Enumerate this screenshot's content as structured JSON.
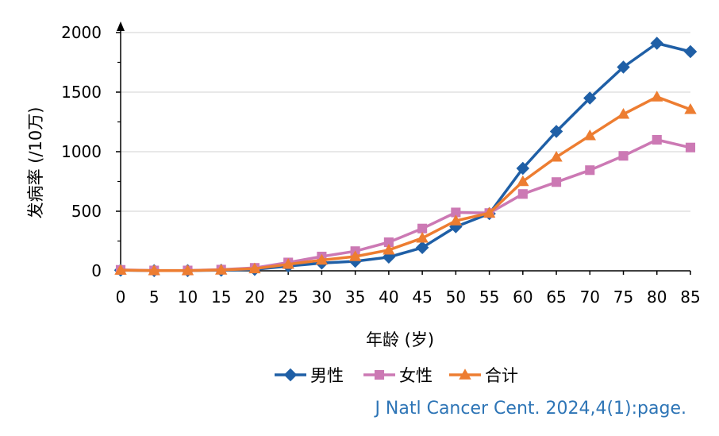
{
  "chart_data": {
    "type": "line",
    "title": "",
    "xlabel": "年龄 (岁)",
    "ylabel": "发病率 (/10万)",
    "x": [
      0,
      5,
      10,
      15,
      20,
      25,
      30,
      35,
      40,
      45,
      50,
      55,
      60,
      65,
      70,
      75,
      80,
      85
    ],
    "x_tick_labels": [
      "0",
      "5",
      "10",
      "15",
      "20",
      "25",
      "30",
      "35",
      "40",
      "45",
      "50",
      "55",
      "60",
      "65",
      "70",
      "75",
      "80",
      "85"
    ],
    "ylim": [
      0,
      2000
    ],
    "y_ticks": [
      0,
      500,
      1000,
      1500,
      2000
    ],
    "y_tick_labels": [
      "0",
      "500",
      "1000",
      "1500",
      "2000"
    ],
    "grid": true,
    "legend_position": "bottom",
    "series": [
      {
        "name": "男性",
        "color": "#1f5fa6",
        "marker": "diamond",
        "values": [
          5,
          2,
          2,
          5,
          12,
          40,
          65,
          80,
          115,
          195,
          370,
          480,
          860,
          1170,
          1450,
          1710,
          1910,
          1840
        ]
      },
      {
        "name": "女性",
        "color": "#cc79b4",
        "marker": "square",
        "values": [
          8,
          3,
          3,
          10,
          25,
          70,
          120,
          165,
          240,
          355,
          490,
          485,
          645,
          745,
          845,
          965,
          1100,
          1035
        ]
      },
      {
        "name": "合计",
        "color": "#ed7d31",
        "marker": "triangle",
        "values": [
          6,
          2,
          2,
          7,
          18,
          55,
          90,
          120,
          175,
          275,
          420,
          485,
          750,
          955,
          1135,
          1315,
          1460,
          1355
        ]
      }
    ]
  },
  "citation": "J Natl Cancer Cent. 2024,4(1):page."
}
